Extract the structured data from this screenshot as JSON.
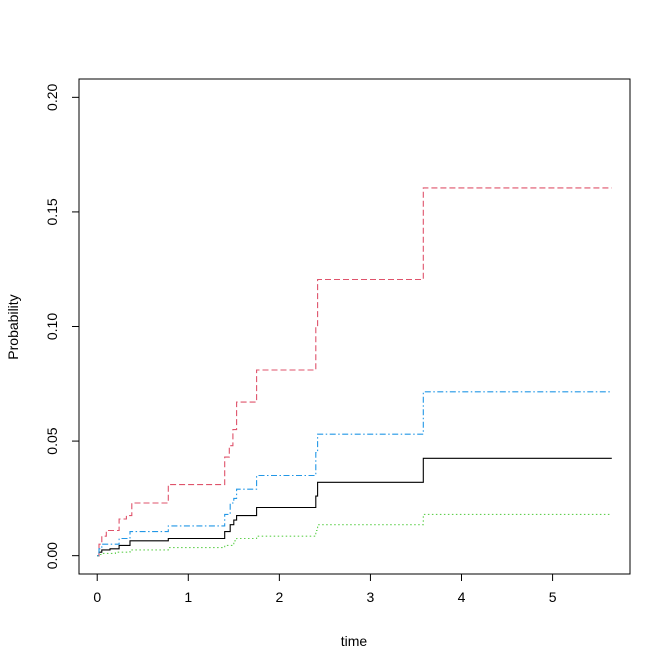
{
  "chart_data": {
    "type": "line",
    "step": true,
    "title": "",
    "xlabel": "time",
    "ylabel": "Probability",
    "xlim": [
      -0.2,
      5.85
    ],
    "ylim": [
      -0.008,
      0.208
    ],
    "xticks": [
      "0",
      "1",
      "2",
      "3",
      "4",
      "5"
    ],
    "yticks": [
      "0.00",
      "0.05",
      "0.10",
      "0.15",
      "0.20"
    ],
    "grid": false,
    "legend": "none",
    "series": [
      {
        "line": "solid",
        "color": "#000000",
        "x": [
          0,
          0.02,
          0.05,
          0.14,
          0.24,
          0.36,
          0.78,
          1.4,
          1.46,
          1.5,
          1.53,
          1.75,
          2.4,
          2.42,
          3.58,
          5.65
        ],
        "y": [
          0,
          0.0015,
          0.0025,
          0.003,
          0.0045,
          0.0065,
          0.0075,
          0.0105,
          0.0135,
          0.0155,
          0.0175,
          0.021,
          0.026,
          0.032,
          0.0425,
          0.0425
        ]
      },
      {
        "line": "dashed",
        "color": "#DF536B",
        "x": [
          0,
          0.02,
          0.05,
          0.1,
          0.24,
          0.32,
          0.38,
          0.78,
          1.4,
          1.45,
          1.49,
          1.53,
          1.75,
          2.4,
          2.42,
          3.58,
          5.65
        ],
        "y": [
          0,
          0.005,
          0.0085,
          0.011,
          0.016,
          0.0175,
          0.023,
          0.031,
          0.043,
          0.048,
          0.055,
          0.067,
          0.081,
          0.1,
          0.1205,
          0.1605,
          0.1605
        ]
      },
      {
        "line": "dotted",
        "color": "#61D04F",
        "x": [
          0,
          0.02,
          0.05,
          0.2,
          0.36,
          0.78,
          1.4,
          1.5,
          1.53,
          1.75,
          2.4,
          2.42,
          3.58,
          5.65
        ],
        "y": [
          0,
          0.0005,
          0.001,
          0.0015,
          0.0025,
          0.0035,
          0.0045,
          0.0065,
          0.0075,
          0.0085,
          0.011,
          0.0135,
          0.018,
          0.018
        ]
      },
      {
        "line": "dotdash",
        "color": "#2297E6",
        "x": [
          0,
          0.02,
          0.05,
          0.24,
          0.36,
          0.78,
          1.4,
          1.46,
          1.5,
          1.53,
          1.75,
          2.4,
          2.42,
          3.58,
          5.65
        ],
        "y": [
          0,
          0.003,
          0.005,
          0.0075,
          0.0105,
          0.013,
          0.018,
          0.023,
          0.025,
          0.029,
          0.035,
          0.045,
          0.053,
          0.0715,
          0.0715
        ]
      }
    ]
  }
}
